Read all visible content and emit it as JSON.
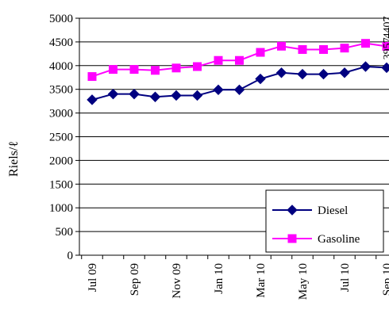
{
  "chart_data": {
    "type": "line",
    "title": "",
    "xlabel": "",
    "ylabel": "Riels/ℓ",
    "ylim": [
      0,
      5000
    ],
    "yticks": [
      0,
      500,
      1000,
      1500,
      2000,
      2500,
      3000,
      3500,
      4000,
      4500,
      5000
    ],
    "categories": [
      "Jul 09",
      "Aug 09",
      "Sep 09",
      "Oct 09",
      "Nov 09",
      "Dec 09",
      "Jan 10",
      "Feb 10",
      "Mar 10",
      "Apr 10",
      "May 10",
      "Jun 10",
      "Jul 10",
      "Aug 10",
      "Sep 10"
    ],
    "xtick_labels": [
      "Jul 09",
      "",
      "Sep 09",
      "",
      "Nov 09",
      "",
      "Jan 10",
      "",
      "Mar 10",
      "",
      "May 10",
      "",
      "Jul 10",
      "",
      "Sep 10"
    ],
    "grid": true,
    "legend_position": "bottom-right",
    "series": [
      {
        "name": "Diesel",
        "color": "#000080",
        "marker": "diamond",
        "values": [
          3280,
          3400,
          3400,
          3340,
          3370,
          3370,
          3490,
          3490,
          3720,
          3850,
          3820,
          3820,
          3850,
          3980,
          3957
        ],
        "end_label": "3957"
      },
      {
        "name": "Gasoline",
        "color": "#ff00ff",
        "marker": "square",
        "values": [
          3770,
          3920,
          3920,
          3900,
          3950,
          3980,
          4110,
          4110,
          4280,
          4410,
          4340,
          4340,
          4370,
          4470,
          4407
        ],
        "end_label": "4407"
      }
    ]
  }
}
